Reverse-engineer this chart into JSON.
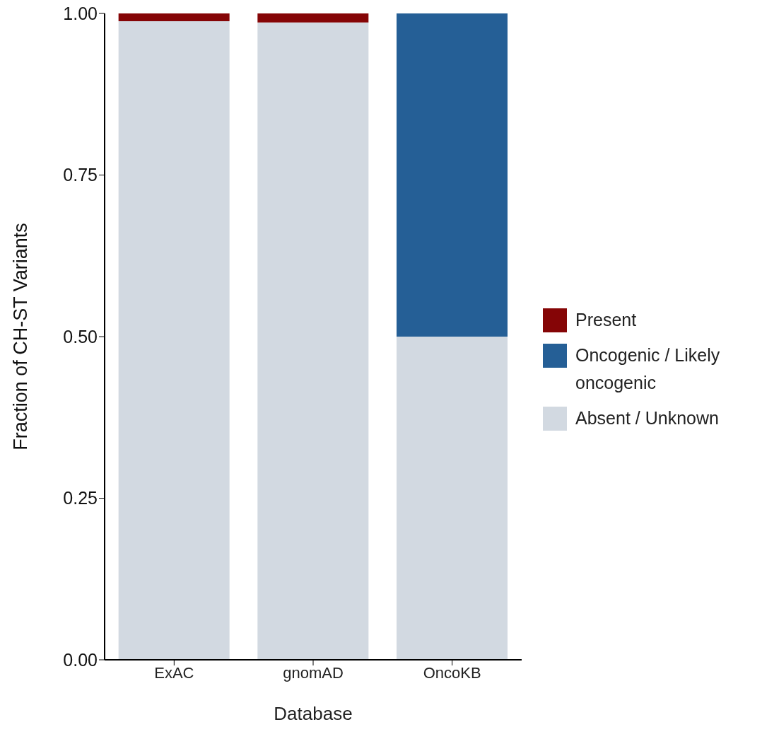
{
  "chart_data": {
    "type": "bar",
    "stacked": true,
    "xlabel": "Database",
    "ylabel": "Fraction of CH-ST Variants",
    "categories": [
      "ExAC",
      "gnomAD",
      "OncoKB"
    ],
    "series": [
      {
        "name": "Absent / Unknown",
        "color": "#d2d9e1",
        "values": [
          0.988,
          0.986,
          0.5
        ]
      },
      {
        "name": "Oncogenic / Likely oncogenic",
        "color": "#255f96",
        "values": [
          0,
          0,
          0.5
        ]
      },
      {
        "name": "Present",
        "color": "#850506",
        "values": [
          0.012,
          0.014,
          0
        ]
      }
    ],
    "ylim": [
      0,
      1
    ],
    "yticks": [
      {
        "value": 0,
        "label": "0.00"
      },
      {
        "value": 0.25,
        "label": "0.25"
      },
      {
        "value": 0.5,
        "label": "0.50"
      },
      {
        "value": 0.75,
        "label": "0.75"
      },
      {
        "value": 1,
        "label": "1.00"
      }
    ],
    "grid": false,
    "legend": "right"
  }
}
